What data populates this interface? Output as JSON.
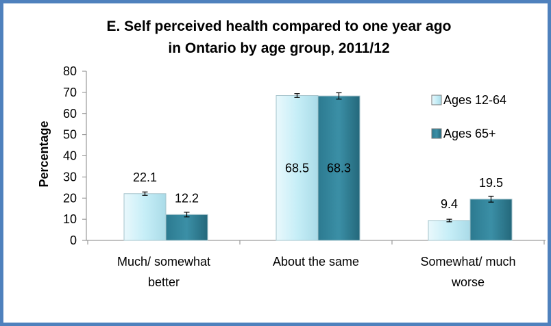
{
  "chart_data": {
    "type": "bar",
    "title_lines": [
      "E. Self perceived health compared to one year ago",
      "in Ontario by age group, 2011/12"
    ],
    "ylabel": "Percentage",
    "xlabel": "",
    "ylim": [
      0,
      80
    ],
    "yticks": [
      0,
      10,
      20,
      30,
      40,
      50,
      60,
      70,
      80
    ],
    "categories": [
      [
        "Much/ somewhat",
        "better"
      ],
      [
        "About the same"
      ],
      [
        "Somewhat/ much",
        "worse"
      ]
    ],
    "series": [
      {
        "name": "Ages 12-64",
        "values": [
          22.1,
          68.5,
          9.4
        ],
        "error": [
          0.8,
          0.9,
          0.6
        ],
        "color": "#c6eef7",
        "labels": [
          "22.1",
          "68.5",
          "9.4"
        ]
      },
      {
        "name": "Ages 65+",
        "values": [
          12.2,
          68.3,
          19.5
        ],
        "error": [
          1.1,
          1.5,
          1.4
        ],
        "color": "#3b8fa6",
        "labels": [
          "12.2",
          "68.3",
          "19.5"
        ]
      }
    ],
    "legend_position": "right",
    "grid": false,
    "error_bars": true
  }
}
